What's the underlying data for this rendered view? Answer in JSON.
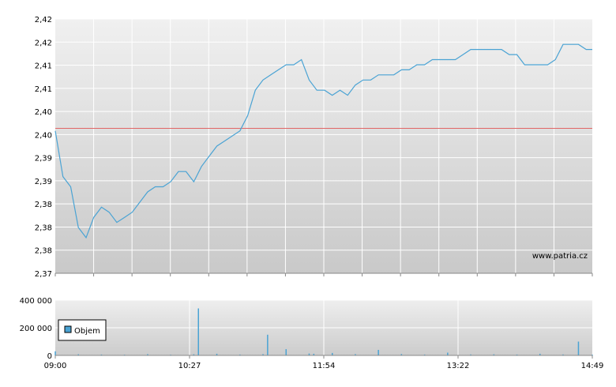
{
  "chart_data": [
    {
      "type": "line",
      "name": "price",
      "xlabel": "",
      "ylabel": "",
      "y_tick_labels": [
        "2,42",
        "2,42",
        "2,41",
        "2,41",
        "2,40",
        "2,40",
        "2,39",
        "2,39",
        "2,38",
        "2,38",
        "2,38",
        "2,37"
      ],
      "ylim": [
        2.37,
        2.42
      ],
      "x_tick_labels": [
        "09:00",
        "10:27",
        "11:54",
        "13:22",
        "14:49"
      ],
      "reference_line": {
        "value": 2.3985,
        "color": "#e06666"
      },
      "watermark": "www.patria.cz",
      "grid": true,
      "series": [
        {
          "color": "#4aa3d4",
          "x": [
            "09:00",
            "09:05",
            "09:10",
            "09:15",
            "09:20",
            "09:25",
            "09:30",
            "09:35",
            "09:40",
            "09:45",
            "09:50",
            "09:55",
            "10:00",
            "10:05",
            "10:10",
            "10:15",
            "10:20",
            "10:25",
            "10:30",
            "10:35",
            "10:40",
            "10:45",
            "10:50",
            "10:55",
            "11:00",
            "11:05",
            "11:10",
            "11:15",
            "11:20",
            "11:25",
            "11:30",
            "11:35",
            "11:40",
            "11:45",
            "11:50",
            "11:55",
            "12:00",
            "12:05",
            "12:10",
            "12:15",
            "12:20",
            "12:25",
            "12:30",
            "12:35",
            "12:40",
            "12:45",
            "12:50",
            "12:55",
            "13:00",
            "13:05",
            "13:10",
            "13:15",
            "13:20",
            "13:25",
            "13:30",
            "13:35",
            "13:40",
            "13:45",
            "13:50",
            "13:55",
            "14:00",
            "14:05",
            "14:10",
            "14:15",
            "14:20",
            "14:25",
            "14:30",
            "14:35",
            "14:40",
            "14:45",
            "14:49"
          ],
          "y": [
            2.398,
            2.389,
            2.387,
            2.379,
            2.377,
            2.381,
            2.383,
            2.382,
            2.38,
            2.381,
            2.382,
            2.384,
            2.386,
            2.387,
            2.387,
            2.388,
            2.39,
            2.39,
            2.388,
            2.391,
            2.393,
            2.395,
            2.396,
            2.397,
            2.398,
            2.401,
            2.406,
            2.408,
            2.409,
            2.41,
            2.411,
            2.411,
            2.412,
            2.408,
            2.406,
            2.406,
            2.405,
            2.406,
            2.405,
            2.407,
            2.408,
            2.408,
            2.409,
            2.409,
            2.409,
            2.41,
            2.41,
            2.411,
            2.411,
            2.412,
            2.412,
            2.412,
            2.412,
            2.413,
            2.414,
            2.414,
            2.414,
            2.414,
            2.414,
            2.413,
            2.413,
            2.411,
            2.411,
            2.411,
            2.411,
            2.412,
            2.415,
            2.415,
            2.415,
            2.414,
            2.414
          ]
        }
      ]
    },
    {
      "type": "bar",
      "name": "volume",
      "ylim": [
        0,
        400000
      ],
      "y_tick_labels": [
        "400 000",
        "200 000",
        "0"
      ],
      "x_tick_labels": [
        "09:00",
        "10:27",
        "11:54",
        "13:22",
        "14:49"
      ],
      "legend": {
        "label": "Objem",
        "color": "#4aa3d4",
        "placement": "left"
      },
      "series": [
        {
          "name": "Objem",
          "color": "#4aa3d4",
          "x": [
            "09:00",
            "09:15",
            "09:30",
            "09:45",
            "10:00",
            "10:15",
            "10:30",
            "10:33",
            "10:45",
            "11:00",
            "11:15",
            "11:18",
            "11:30",
            "11:45",
            "11:48",
            "12:00",
            "12:15",
            "12:30",
            "12:45",
            "13:00",
            "13:15",
            "13:30",
            "13:45",
            "14:00",
            "14:15",
            "14:30",
            "14:40",
            "14:49"
          ],
          "values": [
            30000,
            8000,
            6000,
            5000,
            9000,
            5000,
            8000,
            340000,
            12000,
            6000,
            9000,
            150000,
            45000,
            14000,
            12000,
            18000,
            9000,
            40000,
            10000,
            6000,
            20000,
            7000,
            8000,
            6000,
            12000,
            7000,
            100000,
            5000
          ]
        }
      ]
    }
  ]
}
